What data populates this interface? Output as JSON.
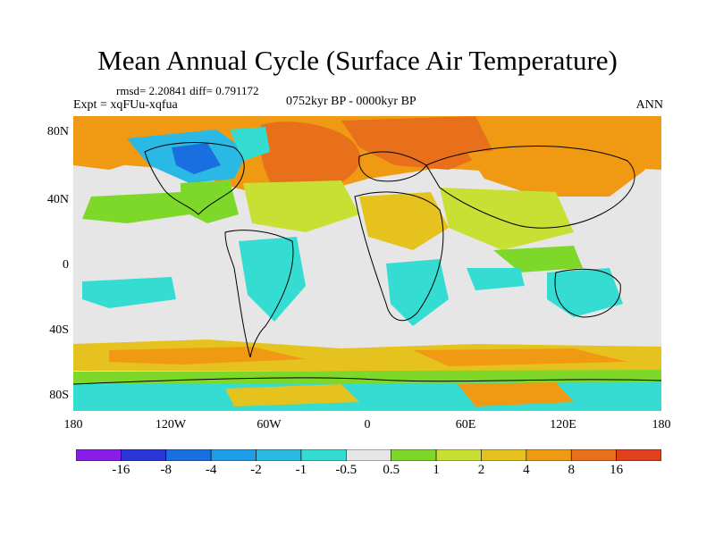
{
  "title": "Mean Annual Cycle (Surface Air Temperature)",
  "stats_line": "rmsd= 2.20841 diff= 0.791172",
  "expt_line": "Expt = xqFUu-xqfua",
  "period_line": "0752kyr BP - 0000kyr BP",
  "season": "ANN",
  "lat_labels": [
    "80N",
    "40N",
    "0",
    "40S",
    "80S"
  ],
  "lon_labels": [
    "180",
    "120W",
    "60W",
    "0",
    "60E",
    "120E",
    "180"
  ],
  "legend": {
    "labels": [
      "-16",
      "-8",
      "-4",
      "-2",
      "-1",
      "-0.5",
      "0.5",
      "1",
      "2",
      "4",
      "8",
      "16"
    ],
    "colors": [
      "#8a1ee6",
      "#2a35d8",
      "#1a6fe0",
      "#1e9ee8",
      "#2ab8e4",
      "#34dcd2",
      "#e6e6e6",
      "#7ed82a",
      "#c8e034",
      "#e6c21e",
      "#f09a14",
      "#e8701a",
      "#e0401a"
    ]
  },
  "map_colors": {
    "ocean_neutral": "#e6e6e6",
    "warm_strong": "#e8701a",
    "warm_medium": "#f09a14",
    "warm_light": "#e6c21e",
    "yellow_green": "#c8e034",
    "green": "#7ed82a",
    "cyan": "#34dcd2",
    "light_blue": "#2ab8e4",
    "blue": "#1a6fe0",
    "coast": "#000000"
  }
}
